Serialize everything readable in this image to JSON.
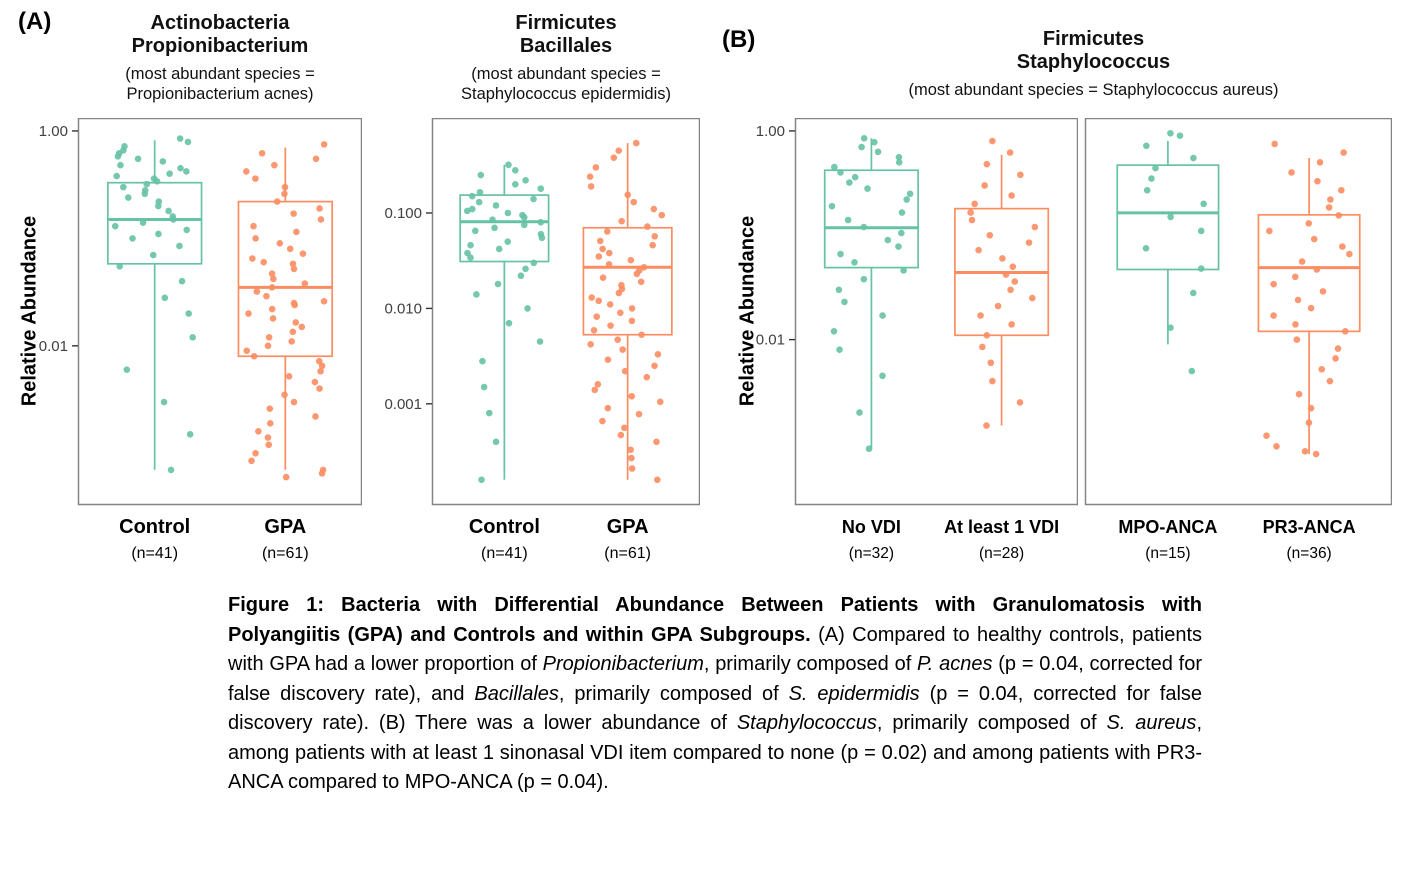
{
  "figure": {
    "panel_a_label": "(A)",
    "panel_b_label": "(B)"
  },
  "chart_data": [
    {
      "type": "boxplot",
      "id": "actinobacteria-propionibacterium",
      "title_lines": [
        "Actinobacteria",
        "Propionibacterium"
      ],
      "subtitle_lines": [
        "(most abundant species =",
        "Propionibacterium acnes)"
      ],
      "ylabel": "Relative Abundance",
      "yscale": "log10",
      "ylim": [
        0.00033,
        1.32
      ],
      "grid": false,
      "yticks": [
        {
          "value": 1.0,
          "label": "1.00"
        },
        {
          "value": 0.01,
          "label": "0.01"
        }
      ],
      "groups": [
        {
          "label": "Control",
          "n_label": "(n=41)",
          "n": 41,
          "color": "#66C2A5",
          "box": {
            "low": 0.0007,
            "q1": 0.058,
            "median": 0.15,
            "q3": 0.33,
            "high": 0.82
          },
          "points": [
            0.85,
            0.79,
            0.72,
            0.66,
            0.62,
            0.58,
            0.55,
            0.52,
            0.48,
            0.45,
            0.42,
            0.4,
            0.38,
            0.36,
            0.34,
            0.32,
            0.3,
            0.28,
            0.26,
            0.24,
            0.22,
            0.2,
            0.18,
            0.16,
            0.15,
            0.14,
            0.13,
            0.12,
            0.11,
            0.1,
            0.085,
            0.07,
            0.055,
            0.04,
            0.028,
            0.02,
            0.012,
            0.006,
            0.003,
            0.0015,
            0.0007
          ]
        },
        {
          "label": "GPA",
          "n_label": "(n=61)",
          "n": 61,
          "color": "#FC8D62",
          "box": {
            "low": 0.0007,
            "q1": 0.008,
            "median": 0.035,
            "q3": 0.22,
            "high": 0.7
          },
          "points": [
            0.75,
            0.62,
            0.55,
            0.48,
            0.42,
            0.36,
            0.3,
            0.26,
            0.22,
            0.19,
            0.17,
            0.15,
            0.13,
            0.115,
            0.1,
            0.09,
            0.08,
            0.072,
            0.065,
            0.058,
            0.052,
            0.047,
            0.042,
            0.038,
            0.035,
            0.032,
            0.029,
            0.026,
            0.024,
            0.022,
            0.02,
            0.018,
            0.0165,
            0.015,
            0.0135,
            0.012,
            0.011,
            0.01,
            0.009,
            0.008,
            0.0072,
            0.0065,
            0.0058,
            0.0052,
            0.0046,
            0.004,
            0.0035,
            0.003,
            0.0026,
            0.0022,
            0.0019,
            0.0016,
            0.0014,
            0.0012,
            0.001,
            0.00085,
            0.0007,
            0.00065,
            0.0006,
            0.025,
            0.06
          ]
        }
      ]
    },
    {
      "type": "boxplot",
      "id": "firmicutes-bacillales",
      "title_lines": [
        "Firmicutes",
        "Bacillales"
      ],
      "subtitle_lines": [
        "(most abundant species =",
        "Staphylococcus epidermidis)"
      ],
      "ylabel": null,
      "yscale": "log10",
      "ylim": [
        8.7e-05,
        0.99
      ],
      "grid": false,
      "yticks": [
        {
          "value": 0.1,
          "label": "0.100"
        },
        {
          "value": 0.01,
          "label": "0.010"
        },
        {
          "value": 0.001,
          "label": "0.001"
        }
      ],
      "groups": [
        {
          "label": "Control",
          "n_label": "(n=41)",
          "n": 41,
          "color": "#66C2A5",
          "box": {
            "low": 0.00016,
            "q1": 0.031,
            "median": 0.081,
            "q3": 0.154,
            "high": 0.32
          },
          "points": [
            0.32,
            0.28,
            0.25,
            0.22,
            0.2,
            0.18,
            0.165,
            0.15,
            0.14,
            0.13,
            0.12,
            0.11,
            0.105,
            0.1,
            0.095,
            0.09,
            0.085,
            0.08,
            0.075,
            0.07,
            0.065,
            0.06,
            0.055,
            0.05,
            0.046,
            0.042,
            0.038,
            0.034,
            0.03,
            0.026,
            0.022,
            0.018,
            0.014,
            0.01,
            0.007,
            0.0045,
            0.0028,
            0.0015,
            0.0008,
            0.0004,
            0.00016
          ]
        },
        {
          "label": "GPA",
          "n_label": "(n=61)",
          "n": 61,
          "color": "#FC8D62",
          "box": {
            "low": 0.00016,
            "q1": 0.0053,
            "median": 0.027,
            "q3": 0.07,
            "high": 0.54
          },
          "points": [
            0.54,
            0.45,
            0.38,
            0.3,
            0.24,
            0.19,
            0.155,
            0.13,
            0.11,
            0.095,
            0.082,
            0.072,
            0.064,
            0.057,
            0.051,
            0.046,
            0.042,
            0.038,
            0.035,
            0.032,
            0.029,
            0.027,
            0.025,
            0.023,
            0.021,
            0.019,
            0.0175,
            0.016,
            0.0145,
            0.013,
            0.012,
            0.011,
            0.01,
            0.009,
            0.0082,
            0.0074,
            0.0066,
            0.0059,
            0.0053,
            0.0047,
            0.0042,
            0.0037,
            0.0033,
            0.0029,
            0.0025,
            0.0022,
            0.0019,
            0.0016,
            0.0014,
            0.0012,
            0.00105,
            0.0009,
            0.00078,
            0.00066,
            0.00056,
            0.00047,
            0.0004,
            0.00033,
            0.00027,
            0.00021,
            0.00016
          ]
        }
      ]
    },
    {
      "type": "boxplot",
      "id": "firmicutes-staphylococcus-vdi",
      "title_lines": [
        "Firmicutes",
        "Staphylococcus"
      ],
      "subtitle_lines": [
        "(most abundant species = Staphylococcus aureus)"
      ],
      "ylabel": "Relative Abundance",
      "yscale": "log10",
      "ylim": [
        0.00026,
        1.33
      ],
      "grid": false,
      "yticks": [
        {
          "value": 1.0,
          "label": "1.00"
        },
        {
          "value": 0.01,
          "label": "0.01"
        }
      ],
      "groups": [
        {
          "label": "No VDI",
          "n_label": "(n=32)",
          "n": 32,
          "color": "#66C2A5",
          "box": {
            "low": 0.0009,
            "q1": 0.049,
            "median": 0.118,
            "q3": 0.42,
            "high": 0.85
          },
          "points": [
            0.85,
            0.78,
            0.7,
            0.63,
            0.56,
            0.5,
            0.45,
            0.4,
            0.36,
            0.32,
            0.28,
            0.25,
            0.22,
            0.19,
            0.165,
            0.14,
            0.12,
            0.105,
            0.09,
            0.078,
            0.066,
            0.055,
            0.046,
            0.038,
            0.03,
            0.023,
            0.017,
            0.012,
            0.008,
            0.0045,
            0.002,
            0.0009
          ]
        },
        {
          "label": "At least 1 VDI",
          "n_label": "(n=28)",
          "n": 28,
          "color": "#FC8D62",
          "box": {
            "low": 0.0015,
            "q1": 0.011,
            "median": 0.044,
            "q3": 0.18,
            "high": 0.59
          },
          "points": [
            0.8,
            0.62,
            0.48,
            0.38,
            0.3,
            0.24,
            0.2,
            0.165,
            0.14,
            0.12,
            0.1,
            0.085,
            0.072,
            0.06,
            0.05,
            0.042,
            0.036,
            0.03,
            0.025,
            0.021,
            0.017,
            0.014,
            0.011,
            0.0085,
            0.006,
            0.004,
            0.0025,
            0.0015
          ]
        }
      ]
    },
    {
      "type": "boxplot",
      "id": "firmicutes-staphylococcus-anca",
      "title_lines": [],
      "subtitle_lines": [],
      "ylabel": null,
      "yscale": "log10",
      "ylim": [
        0.00026,
        1.33
      ],
      "grid": false,
      "yticks": [],
      "groups": [
        {
          "label": "MPO-ANCA",
          "n_label": "(n=15)",
          "n": 15,
          "color": "#66C2A5",
          "box": {
            "low": 0.009,
            "q1": 0.047,
            "median": 0.164,
            "q3": 0.47,
            "high": 0.8
          },
          "points": [
            0.95,
            0.9,
            0.72,
            0.55,
            0.44,
            0.35,
            0.27,
            0.2,
            0.15,
            0.11,
            0.075,
            0.048,
            0.028,
            0.013,
            0.005
          ]
        },
        {
          "label": "PR3-ANCA",
          "n_label": "(n=36)",
          "n": 36,
          "color": "#FC8D62",
          "box": {
            "low": 0.0008,
            "q1": 0.012,
            "median": 0.049,
            "q3": 0.157,
            "high": 0.55
          },
          "points": [
            0.75,
            0.62,
            0.5,
            0.4,
            0.33,
            0.27,
            0.22,
            0.185,
            0.155,
            0.13,
            0.11,
            0.092,
            0.078,
            0.066,
            0.056,
            0.047,
            0.04,
            0.034,
            0.029,
            0.024,
            0.02,
            0.017,
            0.014,
            0.012,
            0.01,
            0.0082,
            0.0066,
            0.0052,
            0.004,
            0.003,
            0.0022,
            0.0016,
            0.0012,
            0.00095,
            0.00085,
            0.0008
          ]
        }
      ]
    }
  ],
  "caption": {
    "runs": [
      {
        "t": "Figure 1: Bacteria with Differential Abundance Between Patients with Granulomatosis with Polyangiitis (GPA) and Controls and within GPA Subgroups.",
        "b": true
      },
      {
        "t": " (A) Compared to healthy controls, patients with GPA had a lower proportion of "
      },
      {
        "t": "Propionibacterium",
        "i": true
      },
      {
        "t": ", primarily composed of "
      },
      {
        "t": "P. acnes",
        "i": true
      },
      {
        "t": " (p = 0.04, corrected for false discovery rate), and "
      },
      {
        "t": "Bacillales",
        "i": true
      },
      {
        "t": ", primarily composed of "
      },
      {
        "t": "S. epidermidis",
        "i": true
      },
      {
        "t": " (p = 0.04, corrected for false discovery rate). (B) There was a lower abundance of "
      },
      {
        "t": "Staphylococcus",
        "i": true
      },
      {
        "t": ", primarily composed of "
      },
      {
        "t": "S. aureus",
        "i": true
      },
      {
        "t": ", among patients with at least 1 sinonasal VDI item compared to none (p = 0.02) and among patients with PR3-ANCA compared to MPO-ANCA (p = 0.04)."
      }
    ]
  }
}
